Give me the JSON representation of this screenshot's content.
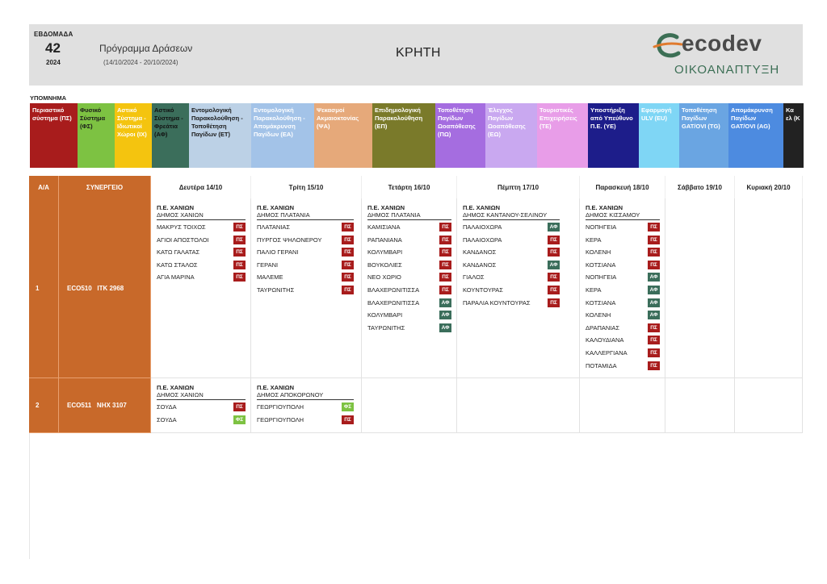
{
  "header": {
    "week_label": "ΕΒΔΟΜΑΔΑ",
    "week_number": "42",
    "year": "2024",
    "program_title": "Πρόγραμμα Δράσεων",
    "program_dates": "(14/10/2024 - 20/10/2024)",
    "region": "ΚΡΗΤΗ",
    "logo_text": "ecodev",
    "logo_subtitle": "ΟΙΚΟΑΝΑΠΤΥΞΗ"
  },
  "legend": {
    "title": "ΥΠΟΜΝΗΜΑ",
    "items": [
      {
        "label": "Περιαστικό σύστημα (ΠΣ)",
        "bg": "#a81c1c",
        "fg": "#ffffff"
      },
      {
        "label": "Φυσικό Σύστημα (ΦΣ)",
        "bg": "#7dc242",
        "fg": "#1a1a1a"
      },
      {
        "label": "Αστικό Σύστημα - Ιδιωτικοί Χώροι (ΙΧ)",
        "bg": "#f4c40f",
        "fg": "#ffffff"
      },
      {
        "label": "Αστικό Σύστημα - Φρεάτια (ΑΦ)",
        "bg": "#3b6e5b",
        "fg": "#111111"
      },
      {
        "label": "Εντομολογική Παρακολούθηση - Τοποθέτηση Παγίδων (ΕΤ)",
        "bg": "#bcd1e6",
        "fg": "#1a1a1a"
      },
      {
        "label": "Εντομολογική Παρακολούθηση - Απομάκρυνση Παγίδων (ΕΑ)",
        "bg": "#a3c3e8",
        "fg": "#ffffff"
      },
      {
        "label": "Ψεκασμοί Ακμαιοκτονίας (ΨΑ)",
        "bg": "#e6a97a",
        "fg": "#ffffff"
      },
      {
        "label": "Επιδημιολογική Παρακολούθηση (ΕΠ)",
        "bg": "#7a7a2a",
        "fg": "#ffffff"
      },
      {
        "label": "Τοποθέτηση Παγίδων Ωοαπόθεσης (ΠΩ)",
        "bg": "#a56de0",
        "fg": "#ffffff"
      },
      {
        "label": "Έλεγχος Παγίδων Ωοαπόθεσης (ΕΩ)",
        "bg": "#c9a8f0",
        "fg": "#ffffff"
      },
      {
        "label": "Τουριστικές Επιχειρήσεις (ΤΕ)",
        "bg": "#e89de8",
        "fg": "#ffffff"
      },
      {
        "label": "Υποστήριξη από Υπεύθυνο Π.Ε. (ΥΕ)",
        "bg": "#1d1d8a",
        "fg": "#ffffff"
      },
      {
        "label": "Εφαρμογή ULV (EU)",
        "bg": "#7fd6f5",
        "fg": "#ffffff"
      },
      {
        "label": "Τοποθέτηση Παγίδων GAT/OVI (TG)",
        "bg": "#6aa5e2",
        "fg": "#ffffff"
      },
      {
        "label": "Απομάκρυνση Παγίδων GAT/OVI (AG)",
        "bg": "#4d8be0",
        "fg": "#ffffff"
      },
      {
        "label": "Κα ελ (Κ",
        "bg": "#222222",
        "fg": "#ffffff"
      }
    ]
  },
  "table": {
    "col_aa": "Α/Α",
    "col_synergeio": "ΣΥΝΕΡΓΕΙΟ",
    "days": [
      "Δευτέρα 14/10",
      "Τρίτη 15/10",
      "Τετάρτη 16/10",
      "Πέμπτη 17/10",
      "Παρασκευή 18/10",
      "Σάββατο 19/10",
      "Κυριακή 20/10"
    ],
    "badge_colors": {
      "ΠΣ": "#a81c1c",
      "ΑΦ": "#3b6e5b",
      "ΦΣ": "#7dc242"
    },
    "rows": [
      {
        "aa": "1",
        "synergeio": "ECO510   ΙΤΚ 2968",
        "days": [
          {
            "pe": "Π.Ε. ΧΑΝΙΩΝ",
            "dimos": "ΔΗΜΟΣ ΧΑΝΙΩΝ",
            "entries": [
              {
                "name": "ΜΑΚΡΥΣ ΤΟΙΧΟΣ",
                "code": "ΠΣ"
              },
              {
                "name": "ΑΓΙΟΙ ΑΠΟΣΤΟΛΟΙ",
                "code": "ΠΣ"
              },
              {
                "name": "ΚΑΤΩ ΓΑΛΑΤΑΣ",
                "code": "ΠΣ"
              },
              {
                "name": "ΚΑΤΩ ΣΤΑΛΟΣ",
                "code": "ΠΣ"
              },
              {
                "name": "ΑΓΙΑ ΜΑΡΙΝΑ",
                "code": "ΠΣ"
              }
            ]
          },
          {
            "pe": "Π.Ε. ΧΑΝΙΩΝ",
            "dimos": "ΔΗΜΟΣ ΠΛΑΤΑΝΙΑ",
            "entries": [
              {
                "name": "ΠΛΑΤΑΝΙΑΣ",
                "code": "ΠΣ"
              },
              {
                "name": "ΠΥΡΓΟΣ ΨΗΛΟΝΕΡΟΥ",
                "code": "ΠΣ"
              },
              {
                "name": "ΠΑΛΙΟ ΓΕΡΑΝΙ",
                "code": "ΠΣ"
              },
              {
                "name": "ΓΕΡΑΝΙ",
                "code": "ΠΣ"
              },
              {
                "name": "ΜΑΛΕΜΕ",
                "code": "ΠΣ"
              },
              {
                "name": "ΤΑΥΡΩΝΙΤΗΣ",
                "code": "ΠΣ"
              }
            ]
          },
          {
            "pe": "Π.Ε. ΧΑΝΙΩΝ",
            "dimos": "ΔΗΜΟΣ ΠΛΑΤΑΝΙΑ",
            "entries": [
              {
                "name": "ΚΑΜΙΣΙΑΝΑ",
                "code": "ΠΣ"
              },
              {
                "name": "ΡΑΠΑΝΙΑΝΑ",
                "code": "ΠΣ"
              },
              {
                "name": "ΚΟΛΥΜΒΑΡΙ",
                "code": "ΠΣ"
              },
              {
                "name": "ΒΟΥΚΟΛΙΕΣ",
                "code": "ΠΣ"
              },
              {
                "name": "ΝΕΟ ΧΩΡΙΟ",
                "code": "ΠΣ"
              },
              {
                "name": "ΒΛΑΧΕΡΩΝΙΤΙΣΣΑ",
                "code": "ΠΣ"
              },
              {
                "name": "ΒΛΑΧΕΡΩΝΙΤΙΣΣΑ",
                "code": "ΑΦ"
              },
              {
                "name": "ΚΟΛΥΜΒΑΡΙ",
                "code": "ΑΦ"
              },
              {
                "name": "ΤΑΥΡΩΝΙΤΗΣ",
                "code": "ΑΦ"
              }
            ]
          },
          {
            "pe": "Π.Ε. ΧΑΝΙΩΝ",
            "dimos": "ΔΗΜΟΣ ΚΑΝΤΑΝΟΥ-ΣΕΛΙΝΟΥ",
            "entries": [
              {
                "name": "ΠΑΛΑΙΟΧΩΡΑ",
                "code": "ΑΦ"
              },
              {
                "name": "ΠΑΛΑΙΟΧΩΡΑ",
                "code": "ΠΣ"
              },
              {
                "name": "ΚΑΝΔΑΝΟΣ",
                "code": "ΠΣ"
              },
              {
                "name": "ΚΑΝΔΑΝΟΣ",
                "code": "ΑΦ"
              },
              {
                "name": "ΓΙΑΛΟΣ",
                "code": "ΠΣ"
              },
              {
                "name": "ΚΟΥΝΤΟΥΡΑΣ",
                "code": "ΠΣ"
              },
              {
                "name": "ΠΑΡΑΛΙΑ ΚΟΥΝΤΟΥΡΑΣ",
                "code": "ΠΣ"
              }
            ]
          },
          {
            "pe": "Π.Ε. ΧΑΝΙΩΝ",
            "dimos": "ΔΗΜΟΣ ΚΙΣΣΑΜΟΥ",
            "entries": [
              {
                "name": "ΝΟΠΗΓΕΙΑ",
                "code": "ΠΣ"
              },
              {
                "name": "ΚΕΡΑ",
                "code": "ΠΣ"
              },
              {
                "name": "ΚΟΛΕΝΗ",
                "code": "ΠΣ"
              },
              {
                "name": "ΚΟΤΣΙΑΝΑ",
                "code": "ΠΣ"
              },
              {
                "name": "ΝΟΠΗΓΕΙΑ",
                "code": "ΑΦ"
              },
              {
                "name": "ΚΕΡΑ",
                "code": "ΑΦ"
              },
              {
                "name": "ΚΟΤΣΙΑΝΑ",
                "code": "ΑΦ"
              },
              {
                "name": "ΚΟΛΕΝΗ",
                "code": "ΑΦ"
              },
              {
                "name": "ΔΡΑΠΑΝΙΑΣ",
                "code": "ΠΣ"
              },
              {
                "name": "ΚΑΛΟΥΔΙΑΝΑ",
                "code": "ΠΣ"
              },
              {
                "name": "ΚΑΛΛΕΡΓΙΑΝΑ",
                "code": "ΠΣ"
              },
              {
                "name": "ΠΟΤΑΜΙΔΑ",
                "code": "ΠΣ"
              }
            ]
          },
          null,
          null
        ]
      },
      {
        "aa": "2",
        "synergeio": "ECO511   ΝΗΧ 3107",
        "days": [
          {
            "pe": "Π.Ε. ΧΑΝΙΩΝ",
            "dimos": "ΔΗΜΟΣ ΧΑΝΙΩΝ",
            "entries": [
              {
                "name": "ΣΟΥΔΑ",
                "code": "ΠΣ"
              },
              {
                "name": "ΣΟΥΔΑ",
                "code": "ΦΣ"
              }
            ]
          },
          {
            "pe": "Π.Ε. ΧΑΝΙΩΝ",
            "dimos": "ΔΗΜΟΣ ΑΠΟΚΟΡΩΝΟΥ",
            "entries": [
              {
                "name": "ΓΕΩΡΓΙΟΥΠΟΛΗ",
                "code": "ΦΣ"
              },
              {
                "name": "ΓΕΩΡΓΙΟΥΠΟΛΗ",
                "code": "ΠΣ"
              }
            ]
          },
          null,
          null,
          null,
          null,
          null
        ]
      }
    ]
  }
}
